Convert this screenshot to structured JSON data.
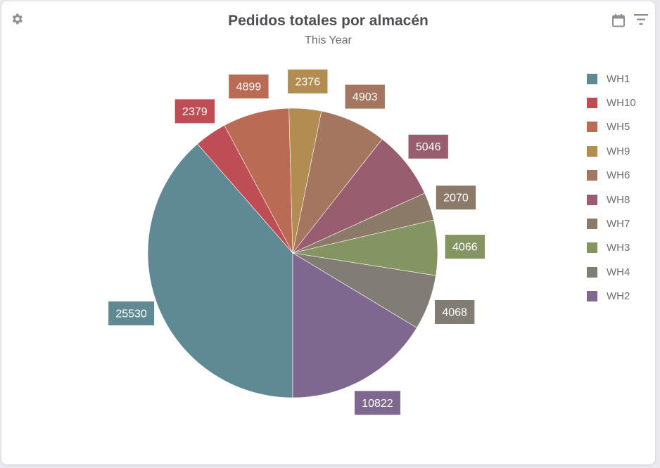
{
  "header": {
    "title": "Pedidos totales por almacén",
    "subtitle": "This Year"
  },
  "icons": {
    "settings": "gear-icon",
    "calendar": "calendar-icon",
    "filter": "filter-icon"
  },
  "chart_data": {
    "type": "pie",
    "title": "Pedidos totales por almacén",
    "subtitle": "This Year",
    "legend_position": "right",
    "slices": [
      {
        "name": "WH1",
        "value": 25530,
        "color": "#5f8a93"
      },
      {
        "name": "WH10",
        "value": 2379,
        "color": "#be4d55"
      },
      {
        "name": "WH5",
        "value": 4899,
        "color": "#b96b53"
      },
      {
        "name": "WH9",
        "value": 2376,
        "color": "#b38c52"
      },
      {
        "name": "WH6",
        "value": 4903,
        "color": "#a4755f"
      },
      {
        "name": "WH8",
        "value": 5046,
        "color": "#995d70"
      },
      {
        "name": "WH7",
        "value": 2070,
        "color": "#8c7a69"
      },
      {
        "name": "WH3",
        "value": 4066,
        "color": "#849562"
      },
      {
        "name": "WH4",
        "value": 4068,
        "color": "#817d74"
      },
      {
        "name": "WH2",
        "value": 10822,
        "color": "#7e6890"
      }
    ]
  }
}
